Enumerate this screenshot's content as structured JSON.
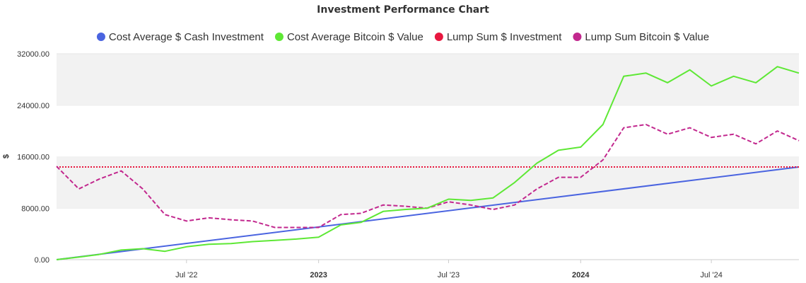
{
  "chart_data": {
    "type": "line",
    "title": "Investment Performance Chart",
    "xlabel": "",
    "ylabel": "$",
    "ylim": [
      0,
      32000
    ],
    "y_ticks": [
      "0.00",
      "8000.00",
      "16000.00",
      "24000.00",
      "32000.00"
    ],
    "y_tick_values": [
      0,
      8000,
      16000,
      24000,
      32000
    ],
    "x_ticks": [
      {
        "label": "Jul '22",
        "date": "2022-07-01",
        "bold": false
      },
      {
        "label": "2023",
        "date": "2023-01-01",
        "bold": true
      },
      {
        "label": "Jul '23",
        "date": "2023-07-01",
        "bold": false
      },
      {
        "label": "2024",
        "date": "2024-01-01",
        "bold": true
      },
      {
        "label": "Jul '24",
        "date": "2024-07-01",
        "bold": false
      }
    ],
    "x_range": [
      "2022-01-01",
      "2024-10-31"
    ],
    "grid": "alternating horizontal bands",
    "legend_position": "top",
    "series": [
      {
        "name": "Cost Average $ Cash Investment",
        "color": "#4a64e0",
        "style": "solid",
        "points": [
          [
            "2022-01-01",
            0
          ],
          [
            "2024-10-31",
            14400
          ]
        ]
      },
      {
        "name": "Cost Average Bitcoin $ Value",
        "color": "#5ee835",
        "style": "solid",
        "points": [
          [
            "2022-01-01",
            0
          ],
          [
            "2022-02-01",
            400
          ],
          [
            "2022-03-01",
            800
          ],
          [
            "2022-04-01",
            1500
          ],
          [
            "2022-05-01",
            1700
          ],
          [
            "2022-06-01",
            1300
          ],
          [
            "2022-07-01",
            2000
          ],
          [
            "2022-08-01",
            2400
          ],
          [
            "2022-09-01",
            2500
          ],
          [
            "2022-10-01",
            2800
          ],
          [
            "2022-11-01",
            3000
          ],
          [
            "2022-12-01",
            3200
          ],
          [
            "2023-01-01",
            3500
          ],
          [
            "2023-02-01",
            5400
          ],
          [
            "2023-03-01",
            5800
          ],
          [
            "2023-04-01",
            7500
          ],
          [
            "2023-05-01",
            7800
          ],
          [
            "2023-06-01",
            8000
          ],
          [
            "2023-07-01",
            9400
          ],
          [
            "2023-08-01",
            9200
          ],
          [
            "2023-09-01",
            9600
          ],
          [
            "2023-10-01",
            12000
          ],
          [
            "2023-11-01",
            15000
          ],
          [
            "2023-12-01",
            17000
          ],
          [
            "2024-01-01",
            17500
          ],
          [
            "2024-02-01",
            21000
          ],
          [
            "2024-03-01",
            28500
          ],
          [
            "2024-04-01",
            29000
          ],
          [
            "2024-05-01",
            27500
          ],
          [
            "2024-06-01",
            29500
          ],
          [
            "2024-07-01",
            27000
          ],
          [
            "2024-08-01",
            28500
          ],
          [
            "2024-09-01",
            27500
          ],
          [
            "2024-10-01",
            30000
          ],
          [
            "2024-10-31",
            29000
          ]
        ]
      },
      {
        "name": "Lump Sum $ Investment",
        "color": "#e8173f",
        "style": "dotted",
        "points": [
          [
            "2022-01-01",
            14400
          ],
          [
            "2024-10-31",
            14400
          ]
        ]
      },
      {
        "name": "Lump Sum Bitcoin $ Value",
        "color": "#c2288e",
        "style": "dashed",
        "points": [
          [
            "2022-01-01",
            14500
          ],
          [
            "2022-02-01",
            11000
          ],
          [
            "2022-03-01",
            12500
          ],
          [
            "2022-04-01",
            13800
          ],
          [
            "2022-05-01",
            11000
          ],
          [
            "2022-06-01",
            7000
          ],
          [
            "2022-07-01",
            6000
          ],
          [
            "2022-08-01",
            6500
          ],
          [
            "2022-09-01",
            6200
          ],
          [
            "2022-10-01",
            6000
          ],
          [
            "2022-11-01",
            5000
          ],
          [
            "2022-12-01",
            5000
          ],
          [
            "2023-01-01",
            5000
          ],
          [
            "2023-02-01",
            7000
          ],
          [
            "2023-03-01",
            7200
          ],
          [
            "2023-04-01",
            8500
          ],
          [
            "2023-05-01",
            8300
          ],
          [
            "2023-06-01",
            8000
          ],
          [
            "2023-07-01",
            9000
          ],
          [
            "2023-08-01",
            8500
          ],
          [
            "2023-09-01",
            7800
          ],
          [
            "2023-10-01",
            8500
          ],
          [
            "2023-11-01",
            11000
          ],
          [
            "2023-12-01",
            12800
          ],
          [
            "2024-01-01",
            12800
          ],
          [
            "2024-02-01",
            15500
          ],
          [
            "2024-03-01",
            20500
          ],
          [
            "2024-04-01",
            21000
          ],
          [
            "2024-05-01",
            19500
          ],
          [
            "2024-06-01",
            20500
          ],
          [
            "2024-07-01",
            19000
          ],
          [
            "2024-08-01",
            19500
          ],
          [
            "2024-09-01",
            18000
          ],
          [
            "2024-10-01",
            20000
          ],
          [
            "2024-10-31",
            18500
          ]
        ]
      }
    ]
  }
}
